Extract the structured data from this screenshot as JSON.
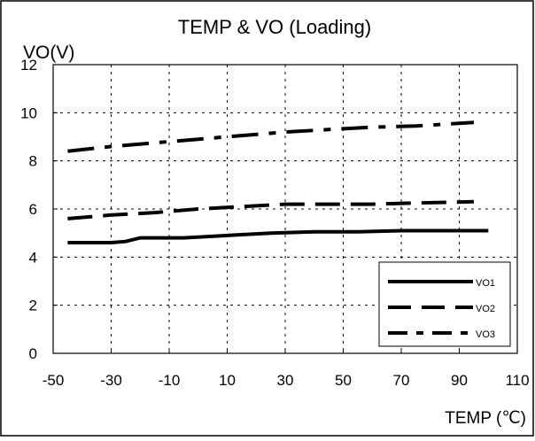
{
  "chart_data": {
    "type": "line",
    "title": "TEMP & VO (Loading)",
    "xlabel": "TEMP (℃)",
    "ylabel": "VO(V)",
    "xlim": [
      -50,
      110
    ],
    "ylim": [
      0,
      12
    ],
    "xticks": [
      -50,
      -30,
      -10,
      10,
      30,
      50,
      70,
      90,
      110
    ],
    "yticks": [
      0,
      2,
      4,
      6,
      8,
      10,
      12
    ],
    "grid": true,
    "legend_position": "bottom-right",
    "series": [
      {
        "name": "VO1",
        "style": "solid",
        "x": [
          -45,
          -30,
          -25,
          -20,
          -5,
          10,
          25,
          40,
          55,
          70,
          85,
          100
        ],
        "y": [
          4.6,
          4.6,
          4.65,
          4.8,
          4.8,
          4.9,
          5.0,
          5.05,
          5.05,
          5.1,
          5.1,
          5.1
        ]
      },
      {
        "name": "VO2",
        "style": "dash",
        "x": [
          -45,
          -30,
          -15,
          0,
          15,
          30,
          45,
          60,
          75,
          95
        ],
        "y": [
          5.6,
          5.75,
          5.85,
          6.0,
          6.1,
          6.2,
          6.2,
          6.2,
          6.25,
          6.3
        ]
      },
      {
        "name": "VO3",
        "style": "dashdot",
        "x": [
          -45,
          -30,
          -15,
          0,
          15,
          30,
          45,
          60,
          75,
          95
        ],
        "y": [
          8.4,
          8.6,
          8.75,
          8.9,
          9.05,
          9.2,
          9.3,
          9.4,
          9.45,
          9.6
        ]
      }
    ]
  }
}
